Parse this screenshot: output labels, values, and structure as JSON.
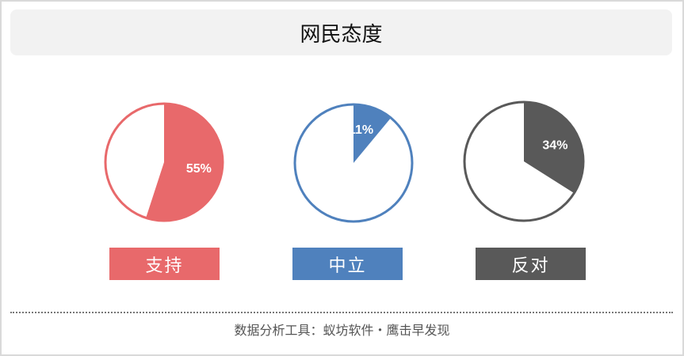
{
  "chart_data": {
    "type": "pie",
    "title": "网民态度",
    "series": [
      {
        "name": "支持",
        "value": 55,
        "label": "55%",
        "color": "#e8696b"
      },
      {
        "name": "中立",
        "value": 11,
        "label": "11%",
        "color": "#4f81bd"
      },
      {
        "name": "反对",
        "value": 34,
        "label": "34%",
        "color": "#595959"
      }
    ]
  },
  "footer": "数据分析工具：蚁坊软件・鹰击早发现"
}
